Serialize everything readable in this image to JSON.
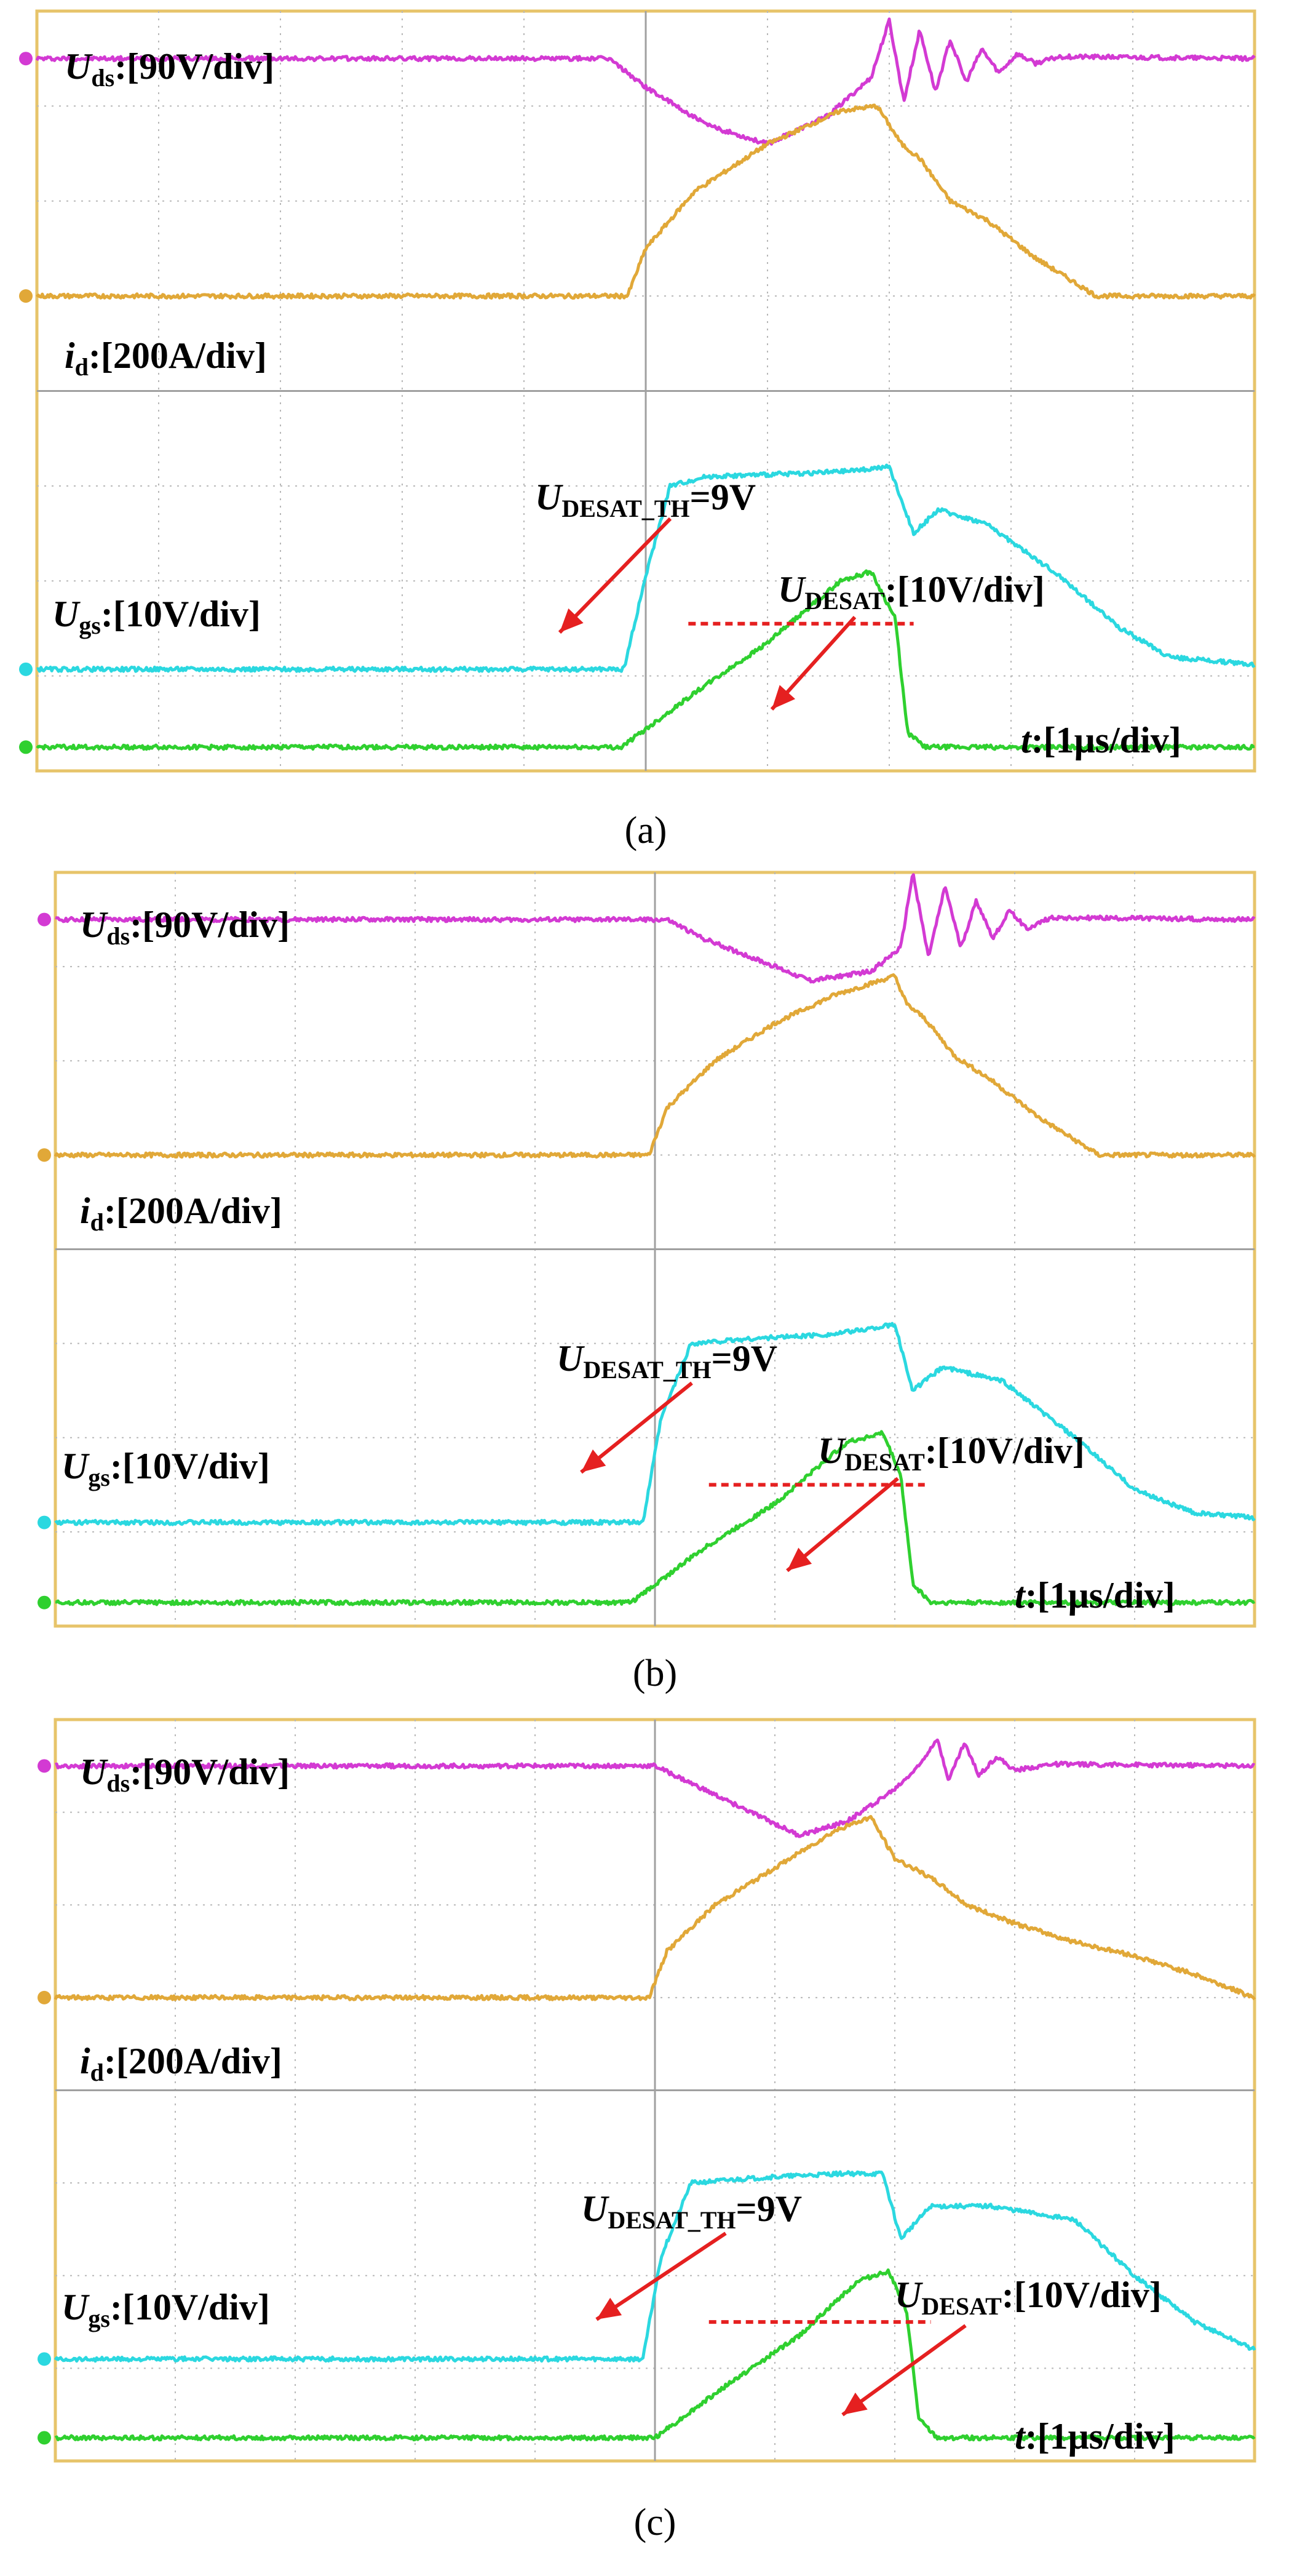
{
  "chart_data": [
    {
      "type": "line",
      "caption": "(a)",
      "title": "",
      "grid": true,
      "x_range": [
        0,
        10
      ],
      "y_range": [
        0,
        8
      ],
      "time_scale": {
        "symbol": "t",
        "value": ":[1μs/div]"
      },
      "series": [
        {
          "sym": "U",
          "sub": "ds",
          "scale": ":[90V/div]",
          "color": "#d33ad3",
          "points": [
            [
              0,
              7.5
            ],
            [
              4.7,
              7.5
            ],
            [
              5.0,
              7.2
            ],
            [
              5.5,
              6.8
            ],
            [
              6.0,
              6.6
            ],
            [
              6.5,
              6.9
            ],
            [
              6.85,
              7.3
            ],
            [
              7.0,
              7.9
            ],
            [
              7.12,
              7.05
            ],
            [
              7.25,
              7.8
            ],
            [
              7.38,
              7.15
            ],
            [
              7.5,
              7.7
            ],
            [
              7.63,
              7.25
            ],
            [
              7.76,
              7.6
            ],
            [
              7.9,
              7.35
            ],
            [
              8.05,
              7.55
            ],
            [
              8.2,
              7.45
            ],
            [
              8.4,
              7.52
            ],
            [
              10,
              7.5
            ]
          ]
        },
        {
          "sym": "i",
          "sub": "d",
          "scale": ":[200A/div]",
          "color": "#e1a838",
          "points": [
            [
              0,
              5.0
            ],
            [
              4.85,
              5.0
            ],
            [
              5.0,
              5.5
            ],
            [
              5.4,
              6.1
            ],
            [
              6.0,
              6.6
            ],
            [
              6.6,
              6.95
            ],
            [
              6.9,
              7.0
            ],
            [
              7.1,
              6.6
            ],
            [
              7.25,
              6.45
            ],
            [
              7.5,
              6.0
            ],
            [
              7.8,
              5.8
            ],
            [
              8.2,
              5.4
            ],
            [
              8.7,
              5.0
            ],
            [
              10,
              5.0
            ]
          ]
        },
        {
          "sym": "U",
          "sub": "gs",
          "scale": ":[10V/div]",
          "color": "#2bd8e0",
          "points": [
            [
              0,
              1.07
            ],
            [
              4.82,
              1.07
            ],
            [
              5.0,
              2.05
            ],
            [
              5.2,
              3.0
            ],
            [
              5.5,
              3.1
            ],
            [
              6.0,
              3.12
            ],
            [
              6.6,
              3.15
            ],
            [
              7.0,
              3.2
            ],
            [
              7.2,
              2.5
            ],
            [
              7.4,
              2.75
            ],
            [
              7.8,
              2.6
            ],
            [
              8.4,
              2.05
            ],
            [
              8.9,
              1.5
            ],
            [
              9.3,
              1.2
            ],
            [
              10,
              1.12
            ]
          ]
        },
        {
          "sym": "U",
          "sub": "DESAT",
          "scale": ":[10V/div]",
          "color": "#2fd02f",
          "points": [
            [
              0,
              0.25
            ],
            [
              4.8,
              0.25
            ],
            [
              5.4,
              0.82
            ],
            [
              6.0,
              1.35
            ],
            [
              6.6,
              2.0
            ],
            [
              6.85,
              2.1
            ],
            [
              7.05,
              1.6
            ],
            [
              7.15,
              0.4
            ],
            [
              7.3,
              0.25
            ],
            [
              10,
              0.25
            ]
          ]
        }
      ],
      "threshold": {
        "sym": "U",
        "sub": "DESAT_TH",
        "value": "=9V",
        "y": 1.55,
        "x_range": [
          5.35,
          7.2
        ]
      }
    },
    {
      "type": "line",
      "caption": "(b)",
      "title": "",
      "grid": true,
      "x_range": [
        0,
        10
      ],
      "y_range": [
        0,
        8
      ],
      "time_scale": {
        "symbol": "t",
        "value": ":[1μs/div]"
      },
      "series": [
        {
          "sym": "U",
          "sub": "ds",
          "scale": ":[90V/div]",
          "color": "#d33ad3",
          "points": [
            [
              0,
              7.5
            ],
            [
              5.1,
              7.5
            ],
            [
              5.4,
              7.3
            ],
            [
              5.8,
              7.1
            ],
            [
              6.3,
              6.85
            ],
            [
              6.8,
              6.95
            ],
            [
              7.05,
              7.2
            ],
            [
              7.15,
              8.0
            ],
            [
              7.28,
              7.1
            ],
            [
              7.42,
              7.85
            ],
            [
              7.55,
              7.2
            ],
            [
              7.68,
              7.7
            ],
            [
              7.82,
              7.3
            ],
            [
              7.96,
              7.6
            ],
            [
              8.1,
              7.4
            ],
            [
              8.3,
              7.52
            ],
            [
              10,
              7.5
            ]
          ]
        },
        {
          "sym": "i",
          "sub": "d",
          "scale": ":[200A/div]",
          "color": "#e1a838",
          "points": [
            [
              0,
              5.0
            ],
            [
              4.95,
              5.0
            ],
            [
              5.1,
              5.5
            ],
            [
              5.5,
              6.0
            ],
            [
              6.0,
              6.4
            ],
            [
              6.5,
              6.7
            ],
            [
              7.0,
              6.9
            ],
            [
              7.1,
              6.6
            ],
            [
              7.25,
              6.45
            ],
            [
              7.5,
              6.05
            ],
            [
              7.8,
              5.8
            ],
            [
              8.2,
              5.4
            ],
            [
              8.7,
              5.0
            ],
            [
              10,
              5.0
            ]
          ]
        },
        {
          "sym": "U",
          "sub": "gs",
          "scale": ":[10V/div]",
          "color": "#2bd8e0",
          "points": [
            [
              0,
              1.1
            ],
            [
              4.9,
              1.1
            ],
            [
              5.05,
              2.2
            ],
            [
              5.3,
              3.0
            ],
            [
              5.8,
              3.05
            ],
            [
              6.5,
              3.1
            ],
            [
              7.0,
              3.2
            ],
            [
              7.15,
              2.5
            ],
            [
              7.4,
              2.75
            ],
            [
              7.9,
              2.6
            ],
            [
              8.5,
              2.0
            ],
            [
              9.0,
              1.45
            ],
            [
              9.5,
              1.2
            ],
            [
              10,
              1.15
            ]
          ]
        },
        {
          "sym": "U",
          "sub": "DESAT",
          "scale": ":[10V/div]",
          "color": "#2fd02f",
          "points": [
            [
              0,
              0.25
            ],
            [
              4.8,
              0.25
            ],
            [
              5.4,
              0.82
            ],
            [
              6.0,
              1.3
            ],
            [
              6.6,
              1.95
            ],
            [
              6.9,
              2.05
            ],
            [
              7.05,
              1.6
            ],
            [
              7.15,
              0.45
            ],
            [
              7.3,
              0.25
            ],
            [
              10,
              0.25
            ]
          ]
        }
      ],
      "threshold": {
        "sym": "U",
        "sub": "DESAT_TH",
        "value": "=9V",
        "y": 1.5,
        "x_range": [
          5.45,
          7.25
        ]
      }
    },
    {
      "type": "line",
      "caption": "(c)",
      "title": "",
      "grid": true,
      "x_range": [
        0,
        10
      ],
      "y_range": [
        0,
        8
      ],
      "time_scale": {
        "symbol": "t",
        "value": ":[1μs/div]"
      },
      "series": [
        {
          "sym": "U",
          "sub": "ds",
          "scale": ":[90V/div]",
          "color": "#d33ad3",
          "points": [
            [
              0,
              7.5
            ],
            [
              5.0,
              7.5
            ],
            [
              5.4,
              7.25
            ],
            [
              5.8,
              7.0
            ],
            [
              6.2,
              6.75
            ],
            [
              6.6,
              6.9
            ],
            [
              7.0,
              7.25
            ],
            [
              7.2,
              7.5
            ],
            [
              7.35,
              7.8
            ],
            [
              7.45,
              7.35
            ],
            [
              7.58,
              7.75
            ],
            [
              7.7,
              7.4
            ],
            [
              7.85,
              7.6
            ],
            [
              8.0,
              7.45
            ],
            [
              8.3,
              7.52
            ],
            [
              10,
              7.5
            ]
          ]
        },
        {
          "sym": "i",
          "sub": "d",
          "scale": ":[200A/div]",
          "color": "#e1a838",
          "points": [
            [
              0,
              5.0
            ],
            [
              4.95,
              5.0
            ],
            [
              5.1,
              5.5
            ],
            [
              5.5,
              6.0
            ],
            [
              6.0,
              6.4
            ],
            [
              6.5,
              6.8
            ],
            [
              6.8,
              6.95
            ],
            [
              7.0,
              6.5
            ],
            [
              7.15,
              6.4
            ],
            [
              7.35,
              6.25
            ],
            [
              7.6,
              6.0
            ],
            [
              8.0,
              5.8
            ],
            [
              8.5,
              5.6
            ],
            [
              9.0,
              5.45
            ],
            [
              9.5,
              5.25
            ],
            [
              10,
              5.0
            ]
          ]
        },
        {
          "sym": "U",
          "sub": "gs",
          "scale": ":[10V/div]",
          "color": "#2bd8e0",
          "points": [
            [
              0,
              1.1
            ],
            [
              4.9,
              1.1
            ],
            [
              5.05,
              2.2
            ],
            [
              5.3,
              3.0
            ],
            [
              5.8,
              3.05
            ],
            [
              6.5,
              3.1
            ],
            [
              6.9,
              3.1
            ],
            [
              7.05,
              2.4
            ],
            [
              7.3,
              2.75
            ],
            [
              7.8,
              2.75
            ],
            [
              8.5,
              2.6
            ],
            [
              9.0,
              2.0
            ],
            [
              9.5,
              1.5
            ],
            [
              10,
              1.2
            ]
          ]
        },
        {
          "sym": "U",
          "sub": "DESAT",
          "scale": ":[10V/div]",
          "color": "#2fd02f",
          "points": [
            [
              0,
              0.25
            ],
            [
              5.0,
              0.25
            ],
            [
              5.6,
              0.82
            ],
            [
              6.2,
              1.35
            ],
            [
              6.7,
              1.95
            ],
            [
              6.95,
              2.05
            ],
            [
              7.1,
              1.6
            ],
            [
              7.2,
              0.45
            ],
            [
              7.35,
              0.25
            ],
            [
              10,
              0.25
            ]
          ]
        }
      ],
      "threshold": {
        "sym": "U",
        "sub": "DESAT_TH",
        "value": "=9V",
        "y": 1.5,
        "x_range": [
          5.45,
          7.3
        ]
      }
    }
  ]
}
